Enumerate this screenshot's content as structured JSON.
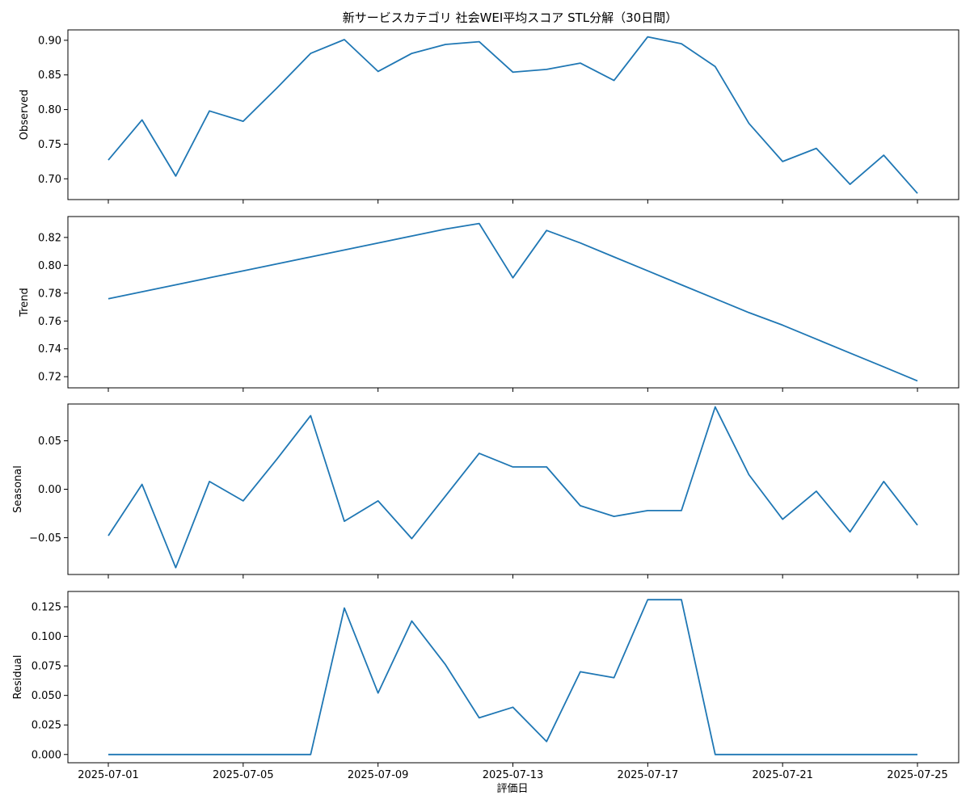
{
  "chart_data": {
    "type": "line",
    "title": "新サービスカテゴリ 社会WEI平均スコア STL分解（30日間）",
    "xlabel": "評価日",
    "line_color": "#1f77b4",
    "x": [
      "2025-07-01",
      "2025-07-02",
      "2025-07-03",
      "2025-07-04",
      "2025-07-05",
      "2025-07-06",
      "2025-07-07",
      "2025-07-08",
      "2025-07-09",
      "2025-07-10",
      "2025-07-11",
      "2025-07-12",
      "2025-07-13",
      "2025-07-14",
      "2025-07-15",
      "2025-07-16",
      "2025-07-17",
      "2025-07-18",
      "2025-07-19",
      "2025-07-20",
      "2025-07-21",
      "2025-07-22",
      "2025-07-23",
      "2025-07-24",
      "2025-07-25"
    ],
    "x_ticks": [
      "2025-07-01",
      "2025-07-05",
      "2025-07-09",
      "2025-07-13",
      "2025-07-17",
      "2025-07-21",
      "2025-07-25"
    ],
    "panels": [
      {
        "name": "Observed",
        "ylabel": "Observed",
        "ylim": [
          0.67,
          0.915
        ],
        "yticks": [
          0.7,
          0.75,
          0.8,
          0.85,
          0.9
        ],
        "ytick_labels": [
          "0.70",
          "0.75",
          "0.80",
          "0.85",
          "0.90"
        ],
        "values": [
          0.727,
          0.785,
          0.704,
          0.798,
          0.783,
          0.831,
          0.881,
          0.901,
          0.855,
          0.881,
          0.894,
          0.898,
          0.854,
          0.858,
          0.867,
          0.842,
          0.905,
          0.895,
          0.862,
          0.78,
          0.725,
          0.744,
          0.692,
          0.734,
          0.679
        ]
      },
      {
        "name": "Trend",
        "ylabel": "Trend",
        "ylim": [
          0.712,
          0.835
        ],
        "yticks": [
          0.72,
          0.74,
          0.76,
          0.78,
          0.8,
          0.82
        ],
        "ytick_labels": [
          "0.72",
          "0.74",
          "0.76",
          "0.78",
          "0.80",
          "0.82"
        ],
        "values": [
          0.776,
          0.781,
          0.786,
          0.791,
          0.796,
          0.801,
          0.806,
          0.811,
          0.816,
          0.821,
          0.826,
          0.83,
          0.791,
          0.825,
          0.816,
          0.806,
          0.796,
          0.786,
          0.776,
          0.766,
          0.757,
          0.747,
          0.737,
          0.727,
          0.717
        ]
      },
      {
        "name": "Seasonal",
        "ylabel": "Seasonal",
        "ylim": [
          -0.088,
          0.088
        ],
        "yticks": [
          -0.05,
          0.0,
          0.05
        ],
        "ytick_labels": [
          "−0.05",
          "0.00",
          "0.05"
        ],
        "values": [
          -0.048,
          0.005,
          -0.081,
          0.008,
          -0.012,
          0.031,
          0.076,
          -0.033,
          -0.012,
          -0.051,
          -0.007,
          0.037,
          0.023,
          0.023,
          -0.017,
          -0.028,
          -0.022,
          -0.022,
          0.085,
          0.015,
          -0.031,
          -0.002,
          -0.044,
          0.008,
          -0.037
        ]
      },
      {
        "name": "Residual",
        "ylabel": "Residual",
        "ylim": [
          -0.007,
          0.138
        ],
        "yticks": [
          0.0,
          0.025,
          0.05,
          0.075,
          0.1,
          0.125
        ],
        "ytick_labels": [
          "0.000",
          "0.025",
          "0.050",
          "0.075",
          "0.100",
          "0.125"
        ],
        "values": [
          0,
          0,
          0,
          0,
          0,
          0,
          0,
          0.124,
          0.052,
          0.113,
          0.076,
          0.031,
          0.04,
          0.011,
          0.07,
          0.065,
          0.131,
          0.131,
          0,
          0,
          0,
          0,
          0,
          0,
          0
        ]
      }
    ]
  }
}
